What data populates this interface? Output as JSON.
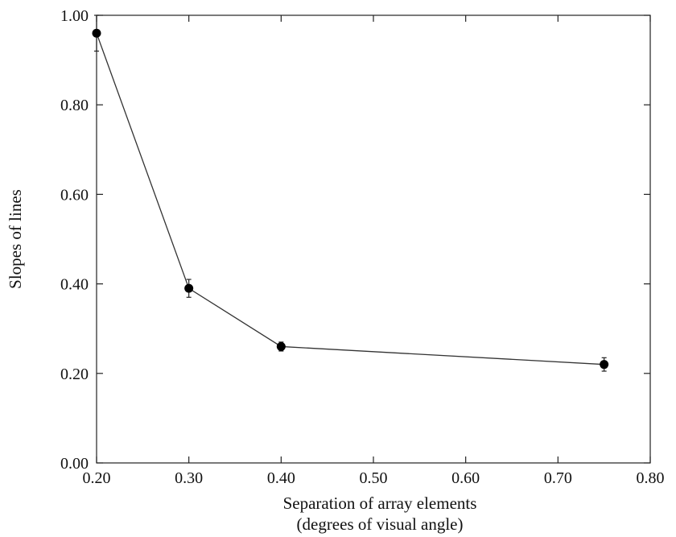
{
  "chart_data": {
    "type": "line",
    "title": "",
    "xlabel_line1": "Separation of array elements",
    "xlabel_line2": "(degrees of visual angle)",
    "ylabel": "Slopes of lines",
    "xlim": [
      0.2,
      0.8
    ],
    "ylim": [
      0.0,
      1.0
    ],
    "x_ticks": [
      "0.20",
      "0.30",
      "0.40",
      "0.50",
      "0.60",
      "0.70",
      "0.80"
    ],
    "y_ticks": [
      "0.00",
      "0.20",
      "0.40",
      "0.60",
      "0.80",
      "1.00"
    ],
    "grid": false,
    "legend": "none",
    "series": [
      {
        "x": [
          0.2,
          0.3,
          0.4,
          0.75
        ],
        "y": [
          0.96,
          0.39,
          0.26,
          0.22
        ],
        "error": [
          0.04,
          0.02,
          0.01,
          0.015
        ]
      }
    ]
  }
}
